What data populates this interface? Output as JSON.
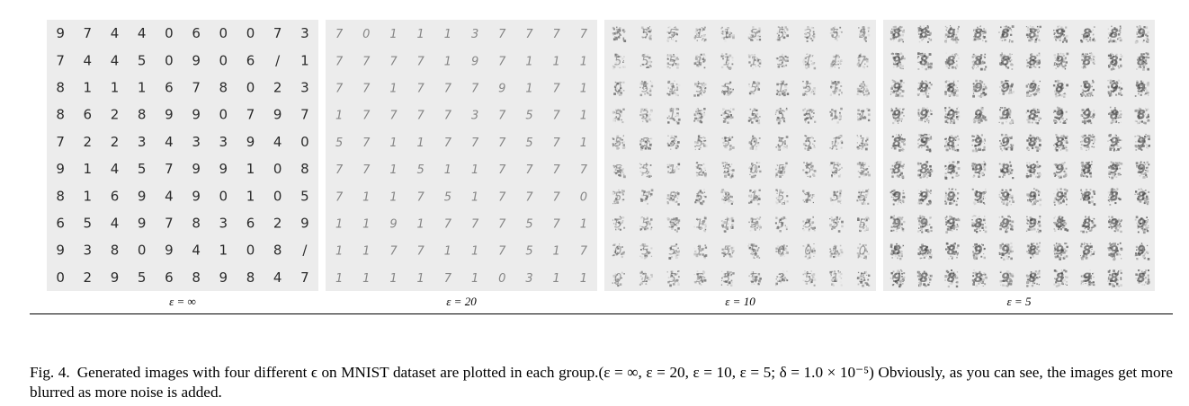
{
  "figure": {
    "panels": [
      {
        "label": "ε = ∞",
        "style": "clean",
        "digits": [
          [
            "9",
            "7",
            "4",
            "4",
            "0",
            "6",
            "0",
            "0",
            "7",
            "3"
          ],
          [
            "7",
            "4",
            "4",
            "5",
            "0",
            "9",
            "0",
            "6",
            "/",
            "1"
          ],
          [
            "8",
            "1",
            "1",
            "1",
            "6",
            "7",
            "8",
            "0",
            "2",
            "3"
          ],
          [
            "8",
            "6",
            "2",
            "8",
            "9",
            "9",
            "0",
            "7",
            "9",
            "7"
          ],
          [
            "7",
            "2",
            "2",
            "3",
            "4",
            "3",
            "3",
            "9",
            "4",
            "0"
          ],
          [
            "9",
            "1",
            "4",
            "5",
            "7",
            "9",
            "9",
            "1",
            "0",
            "8"
          ],
          [
            "8",
            "1",
            "6",
            "9",
            "4",
            "9",
            "0",
            "1",
            "0",
            "5"
          ],
          [
            "6",
            "5",
            "4",
            "9",
            "7",
            "8",
            "3",
            "6",
            "2",
            "9"
          ],
          [
            "9",
            "3",
            "8",
            "0",
            "9",
            "4",
            "1",
            "0",
            "8",
            "/"
          ],
          [
            "0",
            "2",
            "9",
            "5",
            "6",
            "8",
            "9",
            "8",
            "4",
            "7"
          ]
        ]
      },
      {
        "label": "ε = 20",
        "style": "faint",
        "digits": [
          [
            "7",
            "0",
            "1",
            "1",
            "1",
            "3",
            "7",
            "7",
            "7",
            "7"
          ],
          [
            "7",
            "7",
            "7",
            "7",
            "1",
            "9",
            "7",
            "1",
            "1",
            "1"
          ],
          [
            "7",
            "7",
            "1",
            "7",
            "7",
            "7",
            "9",
            "1",
            "7",
            "1"
          ],
          [
            "1",
            "7",
            "7",
            "7",
            "7",
            "3",
            "7",
            "5",
            "7",
            "1"
          ],
          [
            "5",
            "7",
            "1",
            "1",
            "7",
            "7",
            "7",
            "5",
            "7",
            "1"
          ],
          [
            "7",
            "7",
            "1",
            "5",
            "1",
            "1",
            "7",
            "7",
            "7",
            "7"
          ],
          [
            "7",
            "1",
            "1",
            "7",
            "5",
            "1",
            "7",
            "7",
            "7",
            "0"
          ],
          [
            "1",
            "1",
            "9",
            "1",
            "7",
            "7",
            "7",
            "5",
            "7",
            "1"
          ],
          [
            "1",
            "1",
            "7",
            "7",
            "1",
            "1",
            "7",
            "5",
            "1",
            "7"
          ],
          [
            "1",
            "1",
            "1",
            "1",
            "7",
            "1",
            "0",
            "3",
            "1",
            "1"
          ]
        ]
      },
      {
        "label": "ε = 10",
        "style": "noisy",
        "digits": [
          [
            "3",
            "5",
            "5",
            "1",
            "1",
            "5",
            "5",
            "3",
            "5",
            "5"
          ],
          [
            "5",
            "5",
            "5",
            "1",
            "1",
            "1",
            "3",
            "1",
            "1",
            "7"
          ],
          [
            "0",
            "5",
            "1",
            "5",
            "5",
            "5",
            "1",
            "5",
            "1",
            "3"
          ],
          [
            "5",
            "3",
            "1",
            "5",
            "5",
            "5",
            "5",
            "5",
            "1",
            "1"
          ],
          [
            "5",
            "5",
            "3",
            "5",
            "5",
            "0",
            "5",
            "5",
            "1",
            "1"
          ],
          [
            "5",
            "5",
            "1",
            "5",
            "5",
            "0",
            "5",
            "5",
            "5",
            "5"
          ],
          [
            "5",
            "5",
            "5",
            "5",
            "3",
            "1",
            "5",
            "1",
            "5",
            "5"
          ],
          [
            "5",
            "5",
            "5",
            "1",
            "1",
            "5",
            "5",
            "5",
            "5",
            "5"
          ],
          [
            "0",
            "5",
            "5",
            "1",
            "5",
            "5",
            "0",
            "0",
            "1",
            "0"
          ],
          [
            "0",
            "1",
            "5",
            "5",
            "5",
            "5",
            "3",
            "5",
            "1",
            "5"
          ]
        ]
      },
      {
        "label": "ε = 5",
        "style": "blurred",
        "digits": [
          [
            "8",
            "8",
            "9",
            "8",
            "8",
            "8",
            "9",
            "8",
            "8",
            "9"
          ],
          [
            "9",
            "8",
            "8",
            "8",
            "8",
            "8",
            "9",
            "8",
            "8",
            "8"
          ],
          [
            "9",
            "9",
            "8",
            "9",
            "9",
            "9",
            "8",
            "9",
            "9",
            "9"
          ],
          [
            "9",
            "9",
            "9",
            "9",
            "9",
            "8",
            "9",
            "9",
            "8",
            "8"
          ],
          [
            "8",
            "9",
            "8",
            "9",
            "9",
            "8",
            "8",
            "9",
            "9",
            "9"
          ],
          [
            "8",
            "8",
            "9",
            "9",
            "8",
            "8",
            "9",
            "8",
            "9",
            "9"
          ],
          [
            "9",
            "9",
            "9",
            "9",
            "9",
            "9",
            "9",
            "8",
            "8",
            "8"
          ],
          [
            "9",
            "9",
            "9",
            "8",
            "9",
            "9",
            "8",
            "8",
            "9",
            "9"
          ],
          [
            "8",
            "9",
            "8",
            "9",
            "9",
            "8",
            "9",
            "8",
            "9",
            "9"
          ],
          [
            "9",
            "8",
            "8",
            "8",
            "9",
            "8",
            "8",
            "9",
            "8",
            "8"
          ]
        ]
      }
    ]
  },
  "caption": {
    "label": "Fig. 4.",
    "text": "Generated images with four different ϵ on MNIST dataset are plotted in each group.(ε = ∞, ε = 20, ε = 10, ε = 5; δ = 1.0 × 10⁻⁵) Obviously, as you can see, the images get more blurred as more noise is added."
  }
}
